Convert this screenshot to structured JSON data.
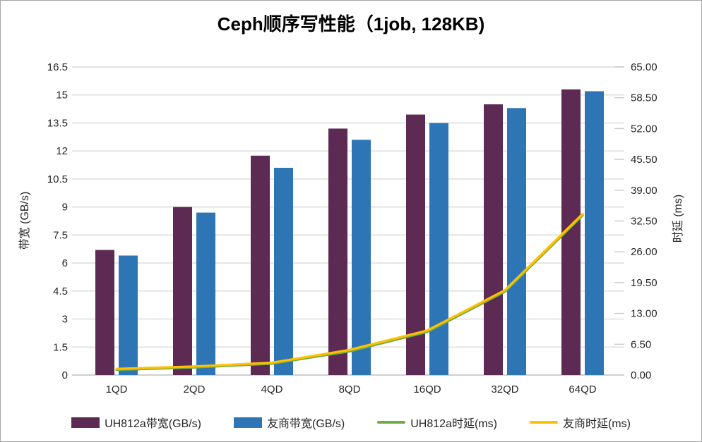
{
  "chart_data": {
    "type": "combo",
    "title": "Ceph顺序写性能（1job, 128KB)",
    "categories": [
      "1QD",
      "2QD",
      "4QD",
      "8QD",
      "16QD",
      "32QD",
      "64QD"
    ],
    "series": [
      {
        "id": "uh812a-bandwidth",
        "name": "UH812a带宽(GB/s)",
        "kind": "bar",
        "axis": "left",
        "color_key": "purple",
        "values": [
          6.7,
          9.0,
          11.75,
          13.2,
          13.95,
          14.5,
          15.3
        ]
      },
      {
        "id": "rival-bandwidth",
        "name": "友商带宽(GB/s)",
        "kind": "bar",
        "axis": "left",
        "color_key": "blue",
        "values": [
          6.4,
          8.7,
          11.1,
          12.6,
          13.5,
          14.3,
          15.2
        ]
      },
      {
        "id": "uh812a-latency",
        "name": "UH812a时延(ms)",
        "kind": "line",
        "axis": "right",
        "color_key": "green",
        "values": [
          1.1,
          1.6,
          2.4,
          5.0,
          9.1,
          17.6,
          33.7
        ]
      },
      {
        "id": "rival-latency",
        "name": "友商时延(ms)",
        "kind": "line",
        "axis": "right",
        "color_key": "yellow",
        "values": [
          1.3,
          1.8,
          2.6,
          5.3,
          9.4,
          17.9,
          34.0
        ]
      }
    ],
    "left_axis": {
      "title": "带宽 (GB/s)",
      "min": 0,
      "max": 16.5,
      "tick_labels": [
        "0",
        "1.5",
        "3",
        "4.5",
        "6",
        "7.5",
        "9",
        "10.5",
        "12",
        "13.5",
        "15",
        "16.5"
      ]
    },
    "right_axis": {
      "title": "时延 (ms)",
      "min": 0,
      "max": 65,
      "tick_labels": [
        "0.00",
        "6.50",
        "13.00",
        "19.50",
        "26.00",
        "32.50",
        "39.00",
        "45.50",
        "52.00",
        "58.50",
        "65.00"
      ]
    },
    "legend_position": "bottom",
    "grid": true
  },
  "colors": {
    "purple": "#5C2A53",
    "blue": "#2E75B6",
    "green": "#70AD47",
    "yellow": "#FFC000",
    "gridline": "#D9D9D9",
    "baseline": "#BFBFBF",
    "tick_mark": "#C9C9C9",
    "axis_text": "#262626",
    "title_text": "#000000",
    "frame_border": "#A6A6A6"
  }
}
